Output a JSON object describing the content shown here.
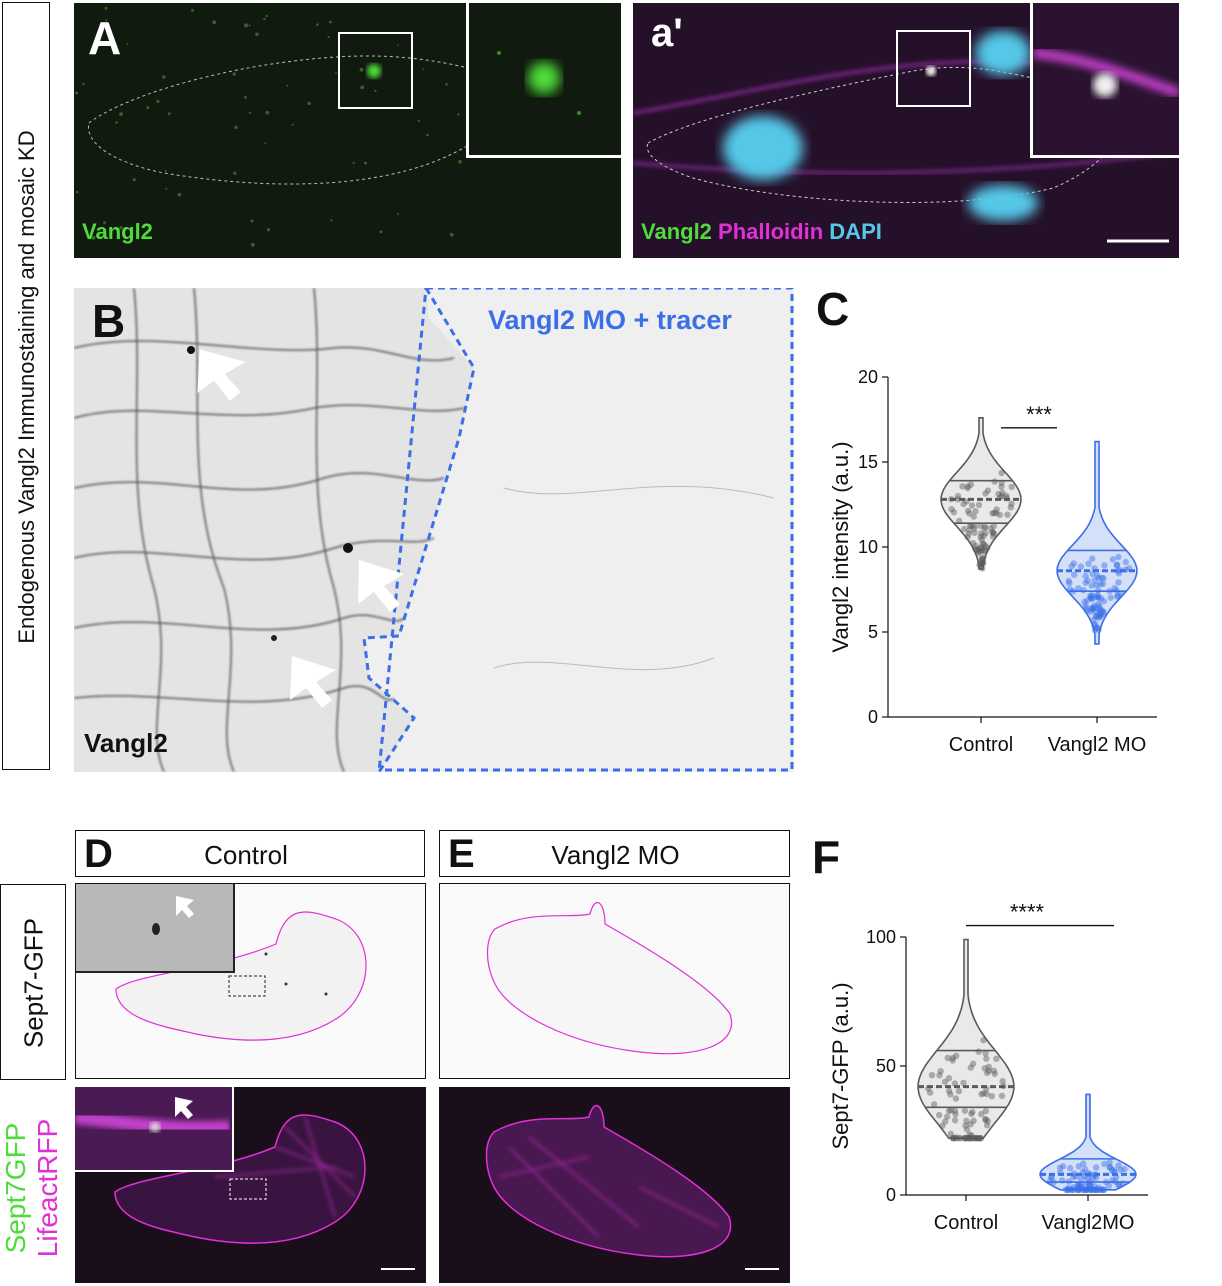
{
  "side_label": "Endogenous Vangl2 Immunostaining and mosaic KD",
  "panelA": {
    "letter": "A",
    "channel": "Vangl2"
  },
  "panelA2": {
    "letter": "a'",
    "channels": [
      "Vangl2",
      "Phalloidin",
      "DAPI"
    ]
  },
  "panelB": {
    "letter": "B",
    "channel": "Vangl2",
    "region_label": "Vangl2 MO + tracer"
  },
  "panelC": {
    "letter": "C"
  },
  "panelD": {
    "letter": "D",
    "condition": "Control"
  },
  "panelE": {
    "letter": "E",
    "condition": "Vangl2 MO"
  },
  "panelF": {
    "letter": "F"
  },
  "row_labels": {
    "sept7": "Sept7-GFP",
    "merge_green": "Sept7GFP",
    "merge_magenta": "LifeactRFP"
  },
  "colors": {
    "green": "#4ddc3a",
    "magenta": "#e030d8",
    "cyan": "#55c8e8",
    "blue": "#3a6fe8",
    "gray_violin": "#555555"
  },
  "chart_data": [
    {
      "type": "violin",
      "panel": "C",
      "ylabel": "Vangl2 intensity (a.u.)",
      "ylim": [
        0,
        20
      ],
      "yticks": [
        0,
        5,
        10,
        15,
        20
      ],
      "categories": [
        "Control",
        "Vangl2 MO"
      ],
      "series": [
        {
          "name": "Control",
          "min": 8.7,
          "q1": 11.4,
          "median": 12.8,
          "q3": 13.9,
          "max": 17.6
        },
        {
          "name": "Vangl2 MO",
          "min": 4.3,
          "q1": 7.4,
          "median": 8.6,
          "q3": 9.8,
          "max": 16.2
        }
      ],
      "significance": "***"
    },
    {
      "type": "violin",
      "panel": "F",
      "ylabel": "Sept7-GFP (a.u.)",
      "ylim": [
        0,
        100
      ],
      "yticks": [
        0,
        50,
        100
      ],
      "categories": [
        "Control",
        "Vangl2MO"
      ],
      "series": [
        {
          "name": "Control",
          "min": 22,
          "q1": 34,
          "median": 42,
          "q3": 56,
          "max": 99
        },
        {
          "name": "Vangl2MO",
          "min": 2,
          "q1": 5,
          "median": 8,
          "q3": 14,
          "max": 39
        }
      ],
      "significance": "****"
    }
  ]
}
